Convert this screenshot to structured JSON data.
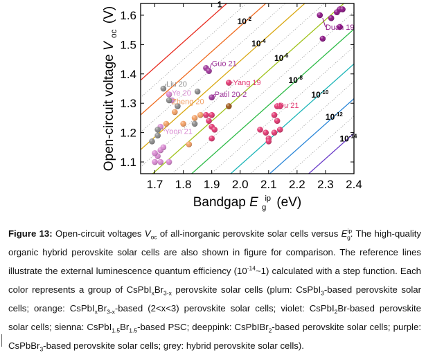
{
  "chart_data": {
    "type": "scatter",
    "xlabel": "Bandgap",
    "xlabel_symbol": "E",
    "xlabel_sup": "ip",
    "xlabel_sub": "g",
    "xlabel_unit": "(eV)",
    "ylabel": "Open-circuit voltage",
    "ylabel_symbol": "V",
    "ylabel_sub": "oc",
    "ylabel_unit": "(V)",
    "xlim": [
      1.65,
      2.4
    ],
    "ylim": [
      1.06,
      1.64
    ],
    "x_ticks": [
      "1.7",
      "1.8",
      "1.9",
      "2.0",
      "2.1",
      "2.2",
      "2.3",
      "2.4"
    ],
    "y_ticks": [
      "1.1",
      "1.2",
      "1.3",
      "1.4",
      "1.5",
      "1.6"
    ],
    "grid": false,
    "reference_lines": [
      {
        "label": "1",
        "sup": "",
        "color": "#e82a1e",
        "offset": 0.0
      },
      {
        "label": "10",
        "sup": "-2",
        "color": "#ef6b1f",
        "offset": 0.1184
      },
      {
        "label": "10",
        "sup": "-4",
        "color": "#d9a70f",
        "offset": 0.2368
      },
      {
        "label": "10",
        "sup": "-6",
        "color": "#9fc21a",
        "offset": 0.3552
      },
      {
        "label": "10",
        "sup": "-8",
        "color": "#2dbb47",
        "offset": 0.4736
      },
      {
        "label": "10",
        "sup": "-10",
        "color": "#1cb5b8",
        "offset": 0.592
      },
      {
        "label": "10",
        "sup": "-12",
        "color": "#2a86d8",
        "offset": 0.7104
      },
      {
        "label": "10",
        "sup": "-14",
        "color": "#6a3bc8",
        "offset": 0.8288
      }
    ],
    "series": [
      {
        "group": "plum",
        "color": "#d98ad2",
        "points": [
          [
            1.7,
            1.1
          ],
          [
            1.71,
            1.12
          ],
          [
            1.72,
            1.14
          ],
          [
            1.73,
            1.15
          ],
          [
            1.7,
            1.13
          ],
          [
            1.75,
            1.1
          ],
          [
            1.72,
            1.22
          ],
          [
            1.75,
            1.33
          ],
          [
            1.76,
            1.31
          ],
          [
            1.72,
            1.1
          ]
        ]
      },
      {
        "group": "orange",
        "color": "#f2a065",
        "points": [
          [
            1.74,
            1.23
          ],
          [
            1.77,
            1.27
          ],
          [
            1.8,
            1.23
          ],
          [
            1.84,
            1.25
          ],
          [
            1.86,
            1.26
          ],
          [
            1.82,
            1.16
          ]
        ]
      },
      {
        "group": "violet",
        "color": "#a0399c",
        "points": [
          [
            1.88,
            1.42
          ],
          [
            1.89,
            1.41
          ],
          [
            1.9,
            1.32
          ]
        ]
      },
      {
        "group": "sienna",
        "color": "#a05a1c",
        "points": [
          [
            1.96,
            1.29
          ]
        ]
      },
      {
        "group": "deeppink",
        "color": "#e23a73",
        "points": [
          [
            1.96,
            1.37
          ],
          [
            1.88,
            1.26
          ],
          [
            1.89,
            1.24
          ],
          [
            1.9,
            1.22
          ],
          [
            1.91,
            1.21
          ],
          [
            1.9,
            1.26
          ],
          [
            1.9,
            1.18
          ],
          [
            2.07,
            1.21
          ],
          [
            2.09,
            1.2
          ],
          [
            2.1,
            1.18
          ],
          [
            2.1,
            1.17
          ],
          [
            2.12,
            1.2
          ],
          [
            2.13,
            1.24
          ],
          [
            2.12,
            1.26
          ],
          [
            2.13,
            1.29
          ],
          [
            2.14,
            1.21
          ],
          [
            2.14,
            1.29
          ]
        ]
      },
      {
        "group": "purple",
        "color": "#8b1585",
        "points": [
          [
            2.28,
            1.6
          ],
          [
            2.29,
            1.52
          ],
          [
            2.32,
            1.59
          ],
          [
            2.34,
            1.61
          ],
          [
            2.35,
            1.62
          ],
          [
            2.36,
            1.62
          ],
          [
            2.35,
            1.56
          ]
        ]
      },
      {
        "group": "grey",
        "color": "#8c8c8c",
        "points": [
          [
            1.73,
            1.35
          ],
          [
            1.75,
            1.31
          ],
          [
            1.71,
            1.19
          ],
          [
            1.71,
            1.21
          ],
          [
            1.69,
            1.17
          ],
          [
            1.78,
            1.29
          ],
          [
            1.84,
            1.23
          ],
          [
            1.85,
            1.34
          ]
        ]
      }
    ],
    "annotations": [
      {
        "text": "Liu 20",
        "color": "#8c8c8c",
        "x": 1.74,
        "y": 1.357,
        "px": 1.73,
        "py": 1.35
      },
      {
        "text": "Ye 20",
        "color": "#d98ad2",
        "x": 1.76,
        "y": 1.327,
        "px": 1.75,
        "py": 1.33
      },
      {
        "text": "Zheng 20",
        "color": "#f2a065",
        "x": 1.76,
        "y": 1.297,
        "px": 1.76,
        "py": 1.31
      },
      {
        "text": "Yoon 21",
        "color": "#d98ad2",
        "x": 1.735,
        "y": 1.196,
        "px": 1.72,
        "py": 1.22
      },
      {
        "text": "Guo 21",
        "color": "#a0399c",
        "x": 1.9,
        "y": 1.427,
        "px": 1.89,
        "py": 1.41
      },
      {
        "text": "Yang 19",
        "color": "#e23a73",
        "x": 1.975,
        "y": 1.362,
        "px": 1.96,
        "py": 1.37
      },
      {
        "text": "Patil 20-2",
        "color": "#a0399c",
        "x": 1.91,
        "y": 1.322,
        "px": 1.9,
        "py": 1.32
      },
      {
        "text": "Du 21",
        "color": "#e23a73",
        "x": 2.135,
        "y": 1.284,
        "px": 2.13,
        "py": 1.29
      },
      {
        "text": "Duan 19",
        "color": "#8b1585",
        "x": 2.3,
        "y": 1.55,
        "px": 2.29,
        "py": 1.59
      }
    ]
  },
  "caption": {
    "label": "Figure 13:",
    "s1": " Open-circuit voltages ",
    "voc_v": "V",
    "voc_sub": "oc",
    "s2": " of all-inorganic perovskite solar cells versus ",
    "eg_e": "E",
    "eg_sup": "ip",
    "eg_sub": "g",
    "s3": ". The high-quality organic hybrid perovskite solar cells are also shown in figure for comparison. The reference lines illustrate the external luminescence quantum efficiency (10",
    "exp1": "-14",
    "s4": "~1) calculated with a step function. Each color represents a group of CsPbI",
    "x1": "x",
    "s5": "Br",
    "x2": "3-x",
    "s6": " perovskite solar cells (plum: CsPbI",
    "n3a": "3",
    "s7": "-based perovskite solar cells; orange: CsPbI",
    "x3": "x",
    "s8": "Br",
    "x4": "3-x",
    "s9": "-based (2<x<3) perovskite solar cells; violet: CsPbI",
    "n2a": "2",
    "s10": "Br-based perovskite solar cells; sienna: CsPbI",
    "n15a": "1.5",
    "s11": "Br",
    "n15b": "1.5",
    "s12": "-based PSC; deeppink: CsPbIBr",
    "n2b": "2",
    "s13": "-based perovskite solar cells; purple: CsPbBr",
    "n3b": "3",
    "s14": "-based perovskite solar cells; grey: hybrid perovskite solar cells)."
  }
}
